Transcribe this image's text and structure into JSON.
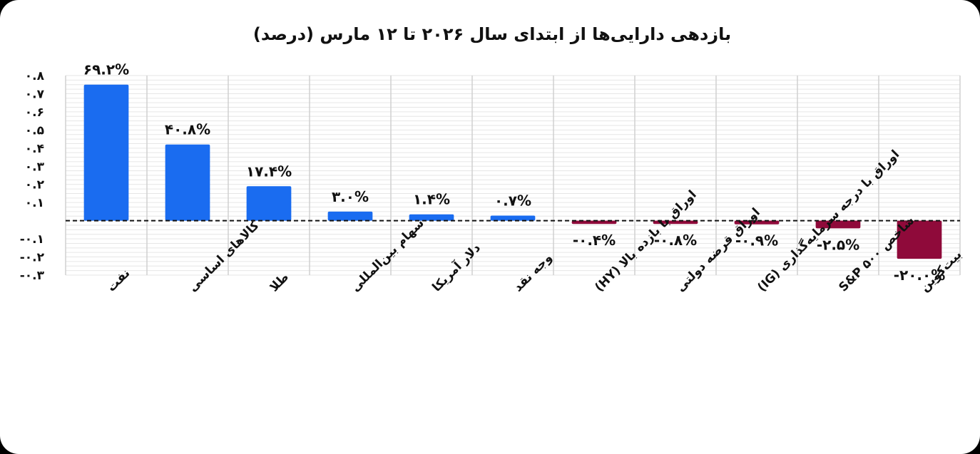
{
  "chart_data": {
    "type": "bar",
    "title": "بازدهی دارایی‌ها از ابتدای سال ۲۰۲۶ تا ۱۲ مارس (درصد)",
    "xlabel": "",
    "ylabel": "",
    "ylim": [
      -0.3,
      0.8
    ],
    "yticks": [
      0.8,
      0.7,
      0.6,
      0.5,
      0.4,
      0.3,
      0.2,
      0.1,
      -0.1,
      -0.2,
      -0.3
    ],
    "ytick_labels": [
      "۰.۸",
      "۰.۷",
      "۰.۶",
      "۰.۵",
      "۰.۴",
      "۰.۳",
      "۰.۲",
      "۰.۱",
      "-۰.۱",
      "-۰.۲",
      "-۰.۳"
    ],
    "grid": true,
    "zero_line": "dashed",
    "categories": [
      "نفت",
      "کالاهای اساسی",
      "طلا",
      "سهام بین‌المللی",
      "دلار آمریکا",
      "وجه نقد",
      "اوراق با بازده بالا (HY)",
      "اوراق قرضه دولتی",
      "اوراق با درجه سرمایه‌گذاری (IG)",
      "شاخص S&P ۵۰۰",
      "بیت‌کوین"
    ],
    "values": [
      0.692,
      0.408,
      0.174,
      0.03,
      0.014,
      0.007,
      -0.004,
      -0.008,
      -0.009,
      -0.025,
      -0.2
    ],
    "display_values": [
      0.75,
      0.42,
      0.19,
      0.05,
      0.035,
      0.028,
      -0.018,
      -0.018,
      -0.02,
      -0.042,
      -0.21
    ],
    "data_labels": [
      "۶۹.۲%",
      "۴۰.۸%",
      "۱۷.۴%",
      "۳.۰%",
      "۱.۴%",
      "۰.۷%",
      "-۰.۴%",
      "-۰.۸%",
      "-۰.۹%",
      "-۲.۵%",
      "-۲۰.۰%"
    ],
    "colors": {
      "positive": "#1a6cf0",
      "negative": "#8f0a3a",
      "grid": "#d0d0d0"
    }
  }
}
